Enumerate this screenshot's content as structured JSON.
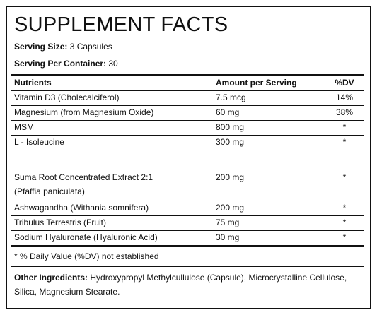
{
  "title": "SUPPLEMENT FACTS",
  "serving_size": {
    "label": "Serving Size:",
    "value": "3 Capsules"
  },
  "serving_per_container": {
    "label": "Serving Per Container:",
    "value": "30"
  },
  "table": {
    "header": [
      "Nutrients",
      "Amount per Serving",
      "%DV"
    ],
    "rows": [
      [
        [
          "Vitamin D3 (Cholecalciferol)"
        ],
        "7.5 mcg",
        "14%"
      ],
      [
        [
          "Magnesium (from Magnesium Oxide)"
        ],
        "60 mg",
        "38%"
      ],
      [
        [
          "MSM"
        ],
        "800 mg",
        "*"
      ],
      [
        [
          "L - Isoleucine"
        ],
        "300 mg",
        "*"
      ],
      [
        [
          "Suma Root Concentrated Extract 2:1",
          "(Pfaffia paniculata)"
        ],
        "200 mg",
        "*"
      ],
      [
        [
          "Ashwagandha (Withania somnifera)"
        ],
        "200 mg",
        "*"
      ],
      [
        [
          "Tribulus Terrestris (Fruit)"
        ],
        "75 mg",
        "*"
      ],
      [
        [
          "Sodium Hyaluronate (Hyaluronic Acid)"
        ],
        "30 mg",
        "*"
      ]
    ]
  },
  "footnote": "* % Daily Value (%DV) not established",
  "other_ingredients": {
    "label": "Other Ingredients:",
    "text": "Hydroxypropyl Methylcullulose (Capsule), Microcrystalline Cellulose, Silica, Magnesium Stearate."
  }
}
